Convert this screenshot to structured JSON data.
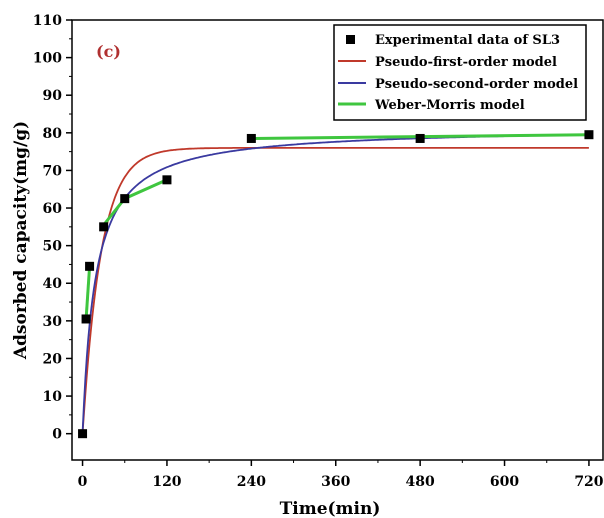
{
  "chart_data": {
    "type": "scatter",
    "panel_label": "(c)",
    "xlabel": "Time(min)",
    "ylabel": "Adsorbed capacity(mg/g)",
    "xlim": [
      -15,
      740
    ],
    "ylim": [
      -7,
      110
    ],
    "xticks": [
      0,
      120,
      240,
      360,
      480,
      600,
      720
    ],
    "yticks": [
      0,
      10,
      20,
      30,
      40,
      50,
      60,
      70,
      80,
      90,
      100,
      110
    ],
    "grid": false,
    "legend_position": "top-right",
    "colors": {
      "experimental": "#000000",
      "pfo": "#c0392b",
      "pso": "#3a3aa0",
      "wm": "#3fc63f",
      "panel_label": "#b03030"
    },
    "series": [
      {
        "name": "Experimental data of SL3",
        "kind": "points",
        "x": [
          0,
          5,
          10,
          30,
          60,
          120,
          240,
          480,
          720
        ],
        "y": [
          0,
          30.5,
          44.5,
          55,
          62.5,
          67.5,
          78.5,
          78.5,
          79.5
        ]
      },
      {
        "name": "Pseudo-first-order model",
        "kind": "curve",
        "model": "pfo",
        "qe": 76,
        "k": 0.038
      },
      {
        "name": "Pseudo-second-order model",
        "kind": "curve",
        "model": "pso",
        "qe": 81.5,
        "k": 0.00068
      },
      {
        "name": "Weber-Morris model",
        "kind": "segments",
        "segments": [
          {
            "x": [
              5,
              10
            ],
            "y": [
              30.5,
              44.5
            ]
          },
          {
            "x": [
              30,
              60,
              120
            ],
            "y": [
              55.5,
              62.5,
              67.5
            ]
          },
          {
            "x": [
              240,
              480,
              720
            ],
            "y": [
              78.5,
              79,
              79.5
            ]
          }
        ]
      }
    ]
  }
}
